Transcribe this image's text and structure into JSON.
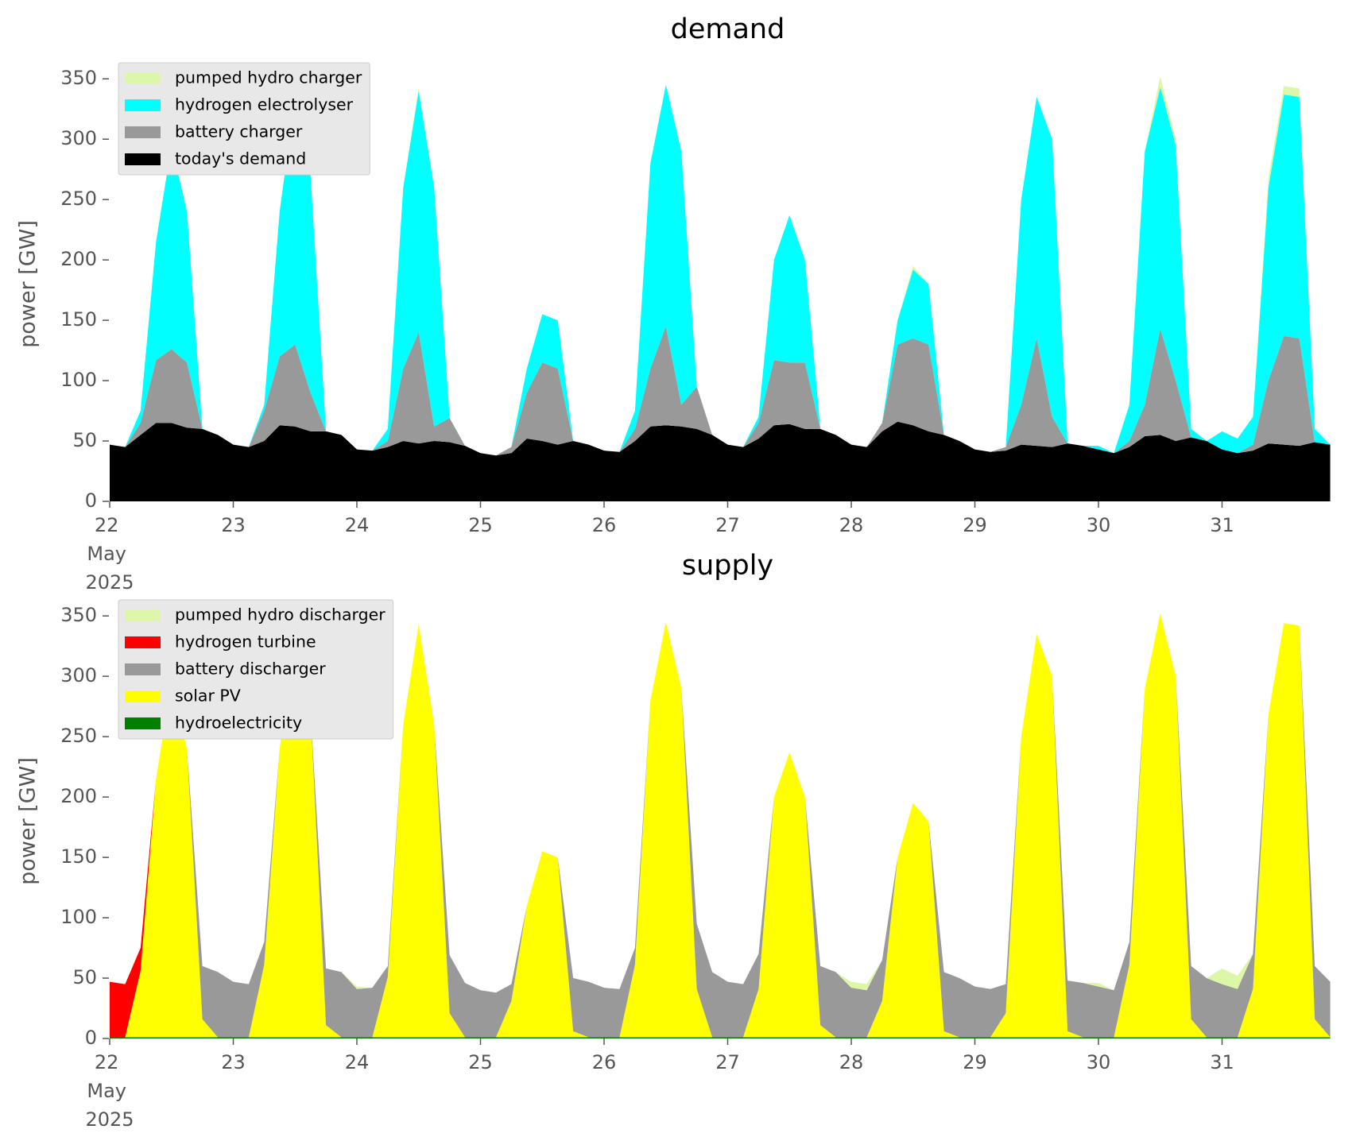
{
  "chart_data": [
    {
      "type": "area",
      "title": "demand",
      "ylabel": "power [GW]",
      "legend": "upper left",
      "x": [
        22,
        22.125,
        22.25,
        22.375,
        22.5,
        22.625,
        22.75,
        22.875,
        23,
        23.125,
        23.25,
        23.375,
        23.5,
        23.625,
        23.75,
        23.875,
        24,
        24.125,
        24.25,
        24.375,
        24.5,
        24.625,
        24.75,
        24.875,
        25,
        25.125,
        25.25,
        25.375,
        25.5,
        25.625,
        25.75,
        25.875,
        26,
        26.125,
        26.25,
        26.375,
        26.5,
        26.625,
        26.75,
        26.875,
        27,
        27.125,
        27.25,
        27.375,
        27.5,
        27.625,
        27.75,
        27.875,
        28,
        28.125,
        28.25,
        28.375,
        28.5,
        28.625,
        28.75,
        28.875,
        29,
        29.125,
        29.25,
        29.375,
        29.5,
        29.625,
        29.75,
        29.875,
        30,
        30.125,
        30.25,
        30.375,
        30.5,
        30.625,
        30.75,
        30.875,
        31,
        31.125,
        31.25,
        31.375,
        31.5,
        31.625,
        31.75,
        31.875
      ],
      "xlim": [
        22,
        32
      ],
      "xticks": [
        {
          "value": 22,
          "label": "22\nMay\n2025"
        },
        23,
        24,
        25,
        26,
        27,
        28,
        29,
        30,
        31
      ],
      "ylim": [
        0,
        360
      ],
      "yticks": [
        0,
        50,
        100,
        150,
        200,
        250,
        300,
        350
      ],
      "series": [
        {
          "name": "today's demand",
          "color": "#000000",
          "values": [
            47,
            45,
            55,
            65,
            65,
            61,
            60,
            55,
            47,
            45,
            50,
            63,
            62,
            58,
            58,
            55,
            43,
            42,
            45,
            50,
            48,
            50,
            49,
            46,
            40,
            38,
            40,
            52,
            50,
            47,
            50,
            47,
            42,
            41,
            50,
            62,
            63,
            62,
            60,
            55,
            47,
            45,
            52,
            63,
            64,
            60,
            60,
            55,
            47,
            45,
            58,
            66,
            63,
            58,
            55,
            50,
            43,
            41,
            42,
            47,
            46,
            45,
            48,
            46,
            43,
            40,
            45,
            54,
            55,
            50,
            53,
            50,
            43,
            40,
            42,
            48,
            47,
            46,
            49,
            47
          ]
        },
        {
          "name": "battery charger",
          "color": "#999999",
          "values": [
            0,
            0,
            10,
            52,
            61,
            54,
            0,
            0,
            0,
            0,
            25,
            57,
            68,
            32,
            0,
            0,
            0,
            0,
            5,
            60,
            92,
            12,
            20,
            0,
            0,
            0,
            5,
            38,
            65,
            63,
            0,
            0,
            0,
            0,
            10,
            48,
            82,
            18,
            35,
            0,
            0,
            0,
            13,
            54,
            51,
            55,
            0,
            0,
            0,
            0,
            7,
            64,
            72,
            72,
            0,
            0,
            0,
            0,
            3,
            33,
            89,
            25,
            0,
            0,
            0,
            0,
            5,
            26,
            88,
            50,
            0,
            0,
            0,
            0,
            5,
            52,
            90,
            89,
            0,
            0
          ]
        },
        {
          "name": "hydrogen electrolyser",
          "color": "#00ffff",
          "values": [
            0,
            0,
            10,
            98,
            169,
            125,
            0,
            0,
            0,
            0,
            5,
            120,
            205,
            180,
            0,
            0,
            0,
            0,
            10,
            150,
            200,
            198,
            0,
            0,
            0,
            0,
            0,
            20,
            40,
            40,
            0,
            0,
            0,
            0,
            15,
            170,
            200,
            210,
            0,
            0,
            0,
            0,
            5,
            83,
            122,
            85,
            0,
            0,
            0,
            0,
            0,
            20,
            57,
            50,
            0,
            0,
            0,
            0,
            0,
            170,
            200,
            230,
            0,
            0,
            3,
            0,
            30,
            210,
            200,
            195,
            7,
            0,
            15,
            12,
            23,
            160,
            200,
            200,
            11,
            0
          ]
        },
        {
          "name": "pumped hydro charger",
          "color": "#dcf7a8",
          "values": [
            0,
            0,
            0,
            0,
            0,
            0,
            0,
            0,
            0,
            0,
            0,
            0,
            0,
            0,
            0,
            0,
            0,
            0,
            0,
            0,
            3,
            0,
            0,
            0,
            0,
            0,
            0,
            0,
            0,
            0,
            0,
            0,
            0,
            0,
            0,
            0,
            0,
            0,
            0,
            0,
            0,
            0,
            0,
            0,
            0,
            0,
            0,
            0,
            0,
            0,
            0,
            0,
            3,
            0,
            0,
            0,
            0,
            0,
            0,
            0,
            0,
            0,
            0,
            0,
            0,
            0,
            0,
            0,
            9,
            5,
            0,
            0,
            0,
            0,
            0,
            8,
            7,
            7,
            0,
            0
          ]
        }
      ]
    },
    {
      "type": "area",
      "title": "supply",
      "ylabel": "power [GW]",
      "legend": "upper left",
      "x": [
        22,
        22.125,
        22.25,
        22.375,
        22.5,
        22.625,
        22.75,
        22.875,
        23,
        23.125,
        23.25,
        23.375,
        23.5,
        23.625,
        23.75,
        23.875,
        24,
        24.125,
        24.25,
        24.375,
        24.5,
        24.625,
        24.75,
        24.875,
        25,
        25.125,
        25.25,
        25.375,
        25.5,
        25.625,
        25.75,
        25.875,
        26,
        26.125,
        26.25,
        26.375,
        26.5,
        26.625,
        26.75,
        26.875,
        27,
        27.125,
        27.25,
        27.375,
        27.5,
        27.625,
        27.75,
        27.875,
        28,
        28.125,
        28.25,
        28.375,
        28.5,
        28.625,
        28.75,
        28.875,
        29,
        29.125,
        29.25,
        29.375,
        29.5,
        29.625,
        29.75,
        29.875,
        30,
        30.125,
        30.25,
        30.375,
        30.5,
        30.625,
        30.75,
        30.875,
        31,
        31.125,
        31.25,
        31.375,
        31.5,
        31.625,
        31.75,
        31.875
      ],
      "xlim": [
        22,
        32
      ],
      "xticks": [
        {
          "value": 22,
          "label": "22\nMay\n2025"
        },
        23,
        24,
        25,
        26,
        27,
        28,
        29,
        30,
        31
      ],
      "ylim": [
        0,
        360
      ],
      "yticks": [
        0,
        50,
        100,
        150,
        200,
        250,
        300,
        350
      ],
      "series": [
        {
          "name": "hydroelectricity",
          "color": "#008000",
          "values": [
            1,
            1,
            1,
            1,
            1,
            1,
            1,
            1,
            1,
            1,
            1,
            1,
            1,
            1,
            1,
            1,
            1,
            1,
            1,
            1,
            1,
            1,
            1,
            1,
            1,
            1,
            1,
            1,
            1,
            1,
            1,
            1,
            1,
            1,
            1,
            1,
            1,
            1,
            1,
            1,
            1,
            1,
            1,
            1,
            1,
            1,
            1,
            1,
            1,
            1,
            1,
            1,
            1,
            1,
            1,
            1,
            1,
            1,
            1,
            1,
            1,
            1,
            1,
            1,
            1,
            1,
            1,
            1,
            1,
            1,
            1,
            1,
            1,
            1,
            1,
            1,
            1,
            1,
            1,
            1
          ]
        },
        {
          "name": "solar PV",
          "color": "#ffff00",
          "values": [
            0,
            0,
            55,
            214,
            294,
            239,
            15,
            0,
            0,
            0,
            60,
            239,
            334,
            269,
            10,
            0,
            0,
            0,
            50,
            259,
            342,
            259,
            20,
            0,
            0,
            0,
            30,
            109,
            154,
            149,
            5,
            0,
            0,
            0,
            60,
            279,
            344,
            289,
            40,
            0,
            0,
            0,
            40,
            199,
            236,
            199,
            10,
            0,
            0,
            0,
            30,
            149,
            194,
            179,
            5,
            0,
            0,
            0,
            20,
            249,
            334,
            299,
            5,
            0,
            0,
            0,
            60,
            289,
            351,
            299,
            15,
            0,
            0,
            0,
            40,
            267,
            343,
            341,
            15,
            0
          ]
        },
        {
          "name": "battery discharger",
          "color": "#999999",
          "values": [
            0,
            0,
            0,
            0,
            0,
            0,
            44,
            54,
            46,
            44,
            19,
            0,
            0,
            0,
            47,
            54,
            40,
            41,
            9,
            0,
            0,
            0,
            48,
            45,
            39,
            37,
            14,
            0,
            0,
            0,
            44,
            46,
            41,
            40,
            14,
            0,
            0,
            0,
            54,
            54,
            46,
            44,
            29,
            0,
            0,
            0,
            49,
            54,
            41,
            39,
            34,
            0,
            0,
            0,
            49,
            49,
            42,
            40,
            24,
            0,
            0,
            0,
            42,
            45,
            42,
            39,
            19,
            0,
            0,
            0,
            44,
            49,
            44,
            40,
            29,
            0,
            0,
            0,
            44,
            46
          ]
        },
        {
          "name": "hydrogen turbine",
          "color": "#ff0000",
          "values": [
            46,
            44,
            19,
            0,
            0,
            0,
            0,
            0,
            0,
            0,
            0,
            0,
            0,
            0,
            0,
            0,
            0,
            0,
            0,
            0,
            0,
            0,
            0,
            0,
            0,
            0,
            0,
            0,
            0,
            0,
            0,
            0,
            0,
            0,
            0,
            0,
            0,
            0,
            0,
            0,
            0,
            0,
            0,
            0,
            0,
            0,
            0,
            0,
            0,
            0,
            0,
            0,
            0,
            0,
            0,
            0,
            0,
            0,
            0,
            0,
            0,
            0,
            0,
            0,
            0,
            0,
            0,
            0,
            0,
            0,
            0,
            0,
            0,
            0,
            0,
            0,
            0,
            0,
            0,
            0
          ]
        },
        {
          "name": "pumped hydro discharger",
          "color": "#dcf7a8",
          "values": [
            0,
            0,
            0,
            0,
            0,
            0,
            0,
            0,
            0,
            0,
            0,
            0,
            0,
            0,
            0,
            0,
            2,
            0,
            0,
            0,
            0,
            0,
            0,
            0,
            0,
            0,
            0,
            0,
            0,
            0,
            0,
            0,
            0,
            0,
            0,
            0,
            0,
            0,
            0,
            0,
            0,
            0,
            0,
            0,
            0,
            0,
            0,
            0,
            5,
            5,
            0,
            0,
            0,
            0,
            0,
            0,
            0,
            0,
            0,
            0,
            0,
            0,
            0,
            0,
            3,
            0,
            0,
            0,
            0,
            0,
            0,
            0,
            13,
            11,
            0,
            0,
            0,
            0,
            0,
            0
          ]
        }
      ]
    }
  ]
}
